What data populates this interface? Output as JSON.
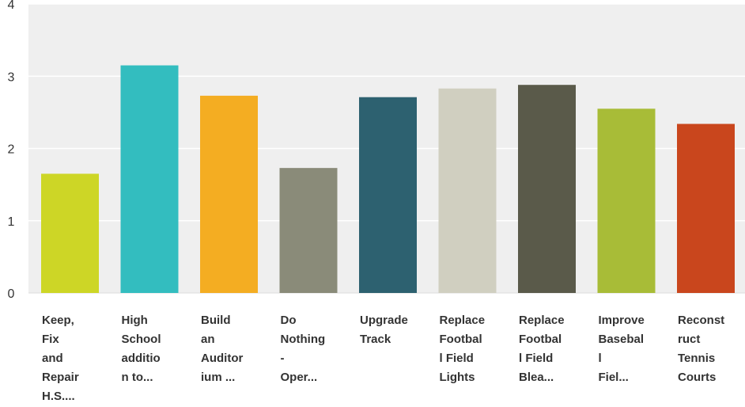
{
  "chart_data": {
    "type": "bar",
    "title": "",
    "xlabel": "",
    "ylabel": "",
    "ylim": [
      0,
      4
    ],
    "yticks": [
      0,
      1,
      2,
      3,
      4
    ],
    "grid": true,
    "legend": "none",
    "categories": [
      "Keep, Fix and Repair H.S....",
      "High School addition to...",
      "Build an Auditorium ...",
      "Do Nothing - Oper...",
      "Upgrade Track",
      "Replace Football Field Lights",
      "Replace Football Field Blea...",
      "Improve Baseball Fiel...",
      "Reconstruct Tennis Courts"
    ],
    "category_label_lines": [
      [
        "Keep,",
        "Fix",
        "and",
        "Repair",
        "H.S...."
      ],
      [
        "High",
        "School",
        "additio",
        "n to..."
      ],
      [
        "Build",
        "an",
        "Auditor",
        "ium ..."
      ],
      [
        "Do",
        "Nothing",
        "-",
        "Oper..."
      ],
      [
        "Upgrade",
        "Track"
      ],
      [
        "Replace",
        "Footbal",
        "l Field",
        "Lights"
      ],
      [
        "Replace",
        "Footbal",
        "l Field",
        "Blea..."
      ],
      [
        "Improve",
        "Basebal",
        "l",
        "Fiel..."
      ],
      [
        "Reconst",
        "ruct",
        "Tennis",
        "Courts"
      ]
    ],
    "values": [
      1.65,
      3.15,
      2.73,
      1.73,
      2.71,
      2.83,
      2.88,
      2.55,
      2.34
    ],
    "colors": [
      "#cdd626",
      "#33bdbf",
      "#f4ad22",
      "#8a8b79",
      "#2d6170",
      "#d0cfc0",
      "#5a5a4a",
      "#a8bc37",
      "#c9461d"
    ],
    "background_color": "#efefef",
    "gridline_color": "#ffffff"
  }
}
